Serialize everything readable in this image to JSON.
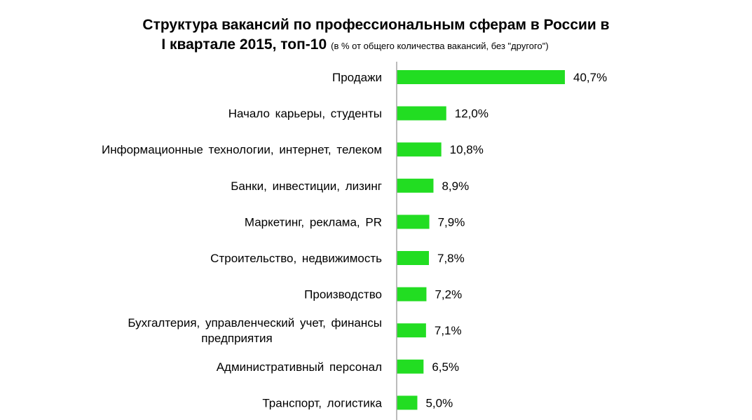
{
  "chart_data": {
    "type": "bar",
    "orientation": "horizontal",
    "title": "Структура вакансий по профессиональным сферам в России в",
    "title_line2": "I квартале 2015, топ-10",
    "subtitle": "(в % от общего количества вакансий, без \"другого\")",
    "xlabel": "",
    "ylabel": "",
    "grid": false,
    "legend": "none",
    "bar_color": "#22DD22",
    "xlim": [
      0,
      50
    ],
    "categories": [
      [
        "Продажи"
      ],
      [
        "Начало карьеры, студенты"
      ],
      [
        "Информационные технологии, интернет, телеком"
      ],
      [
        "Банки, инвестиции, лизинг"
      ],
      [
        "Маркетинг, реклама, PR"
      ],
      [
        "Строительство, недвижимость"
      ],
      [
        "Производство"
      ],
      [
        "Бухгалтерия, управленческий учет, финансы",
        "предприятия"
      ],
      [
        "Административный персонал"
      ],
      [
        "Транспорт, логистика"
      ]
    ],
    "values": [
      40.7,
      12.0,
      10.8,
      8.9,
      7.9,
      7.8,
      7.2,
      7.1,
      6.5,
      5.0
    ],
    "value_labels": [
      "40,7%",
      "12,0%",
      "10,8%",
      "8,9%",
      "7,9%",
      "7,8%",
      "7,2%",
      "7,1%",
      "6,5%",
      "5,0%"
    ]
  }
}
